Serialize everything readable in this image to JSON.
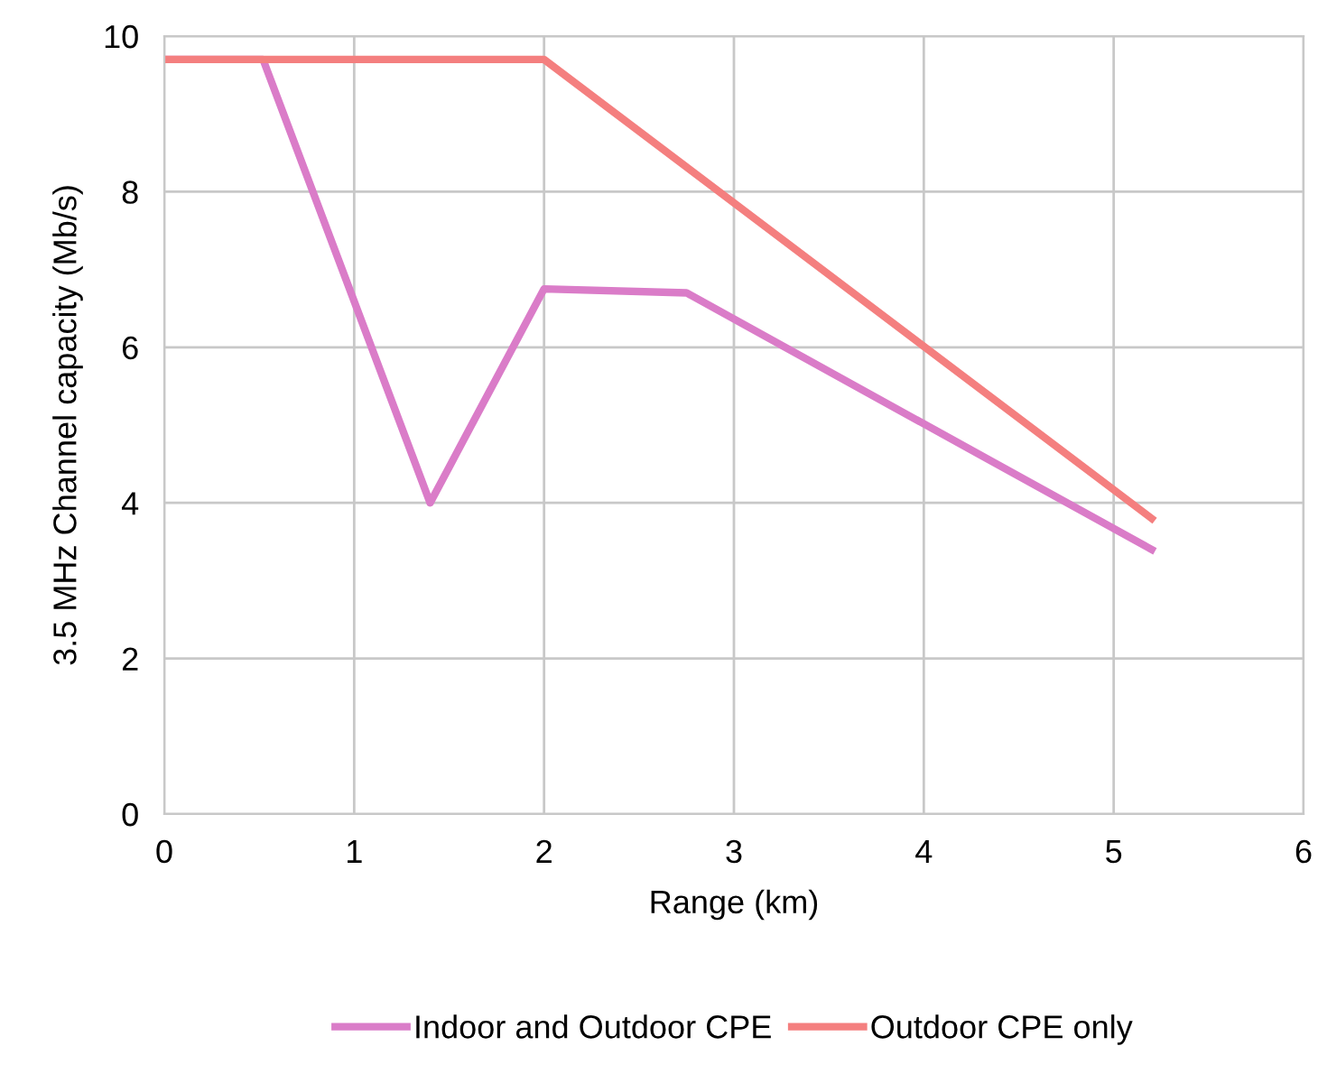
{
  "chart_data": {
    "type": "line",
    "xlabel": "Range (km)",
    "ylabel": "3.5 MHz Channel capacity (Mb/s)",
    "series": [
      {
        "name": "Indoor and Outdoor CPE",
        "color": "#da7cc8",
        "x": [
          0,
          0.52,
          1.4,
          2.0,
          2.75,
          5.2
        ],
        "values": [
          9.7,
          9.7,
          4.0,
          6.75,
          6.7,
          3.4
        ]
      },
      {
        "name": "Outdoor CPE only",
        "color": "#f47f7f",
        "x": [
          0,
          2.0,
          5.2
        ],
        "values": [
          9.7,
          9.7,
          3.8
        ]
      }
    ],
    "xlim": [
      0,
      6
    ],
    "xticks": [
      0,
      1,
      2,
      3,
      4,
      5,
      6
    ],
    "ylim": [
      0,
      10
    ],
    "yticks": [
      0,
      2,
      4,
      6,
      8,
      10
    ],
    "grid": true,
    "legend": "bottom",
    "marker": "none",
    "line_style": "solid"
  }
}
